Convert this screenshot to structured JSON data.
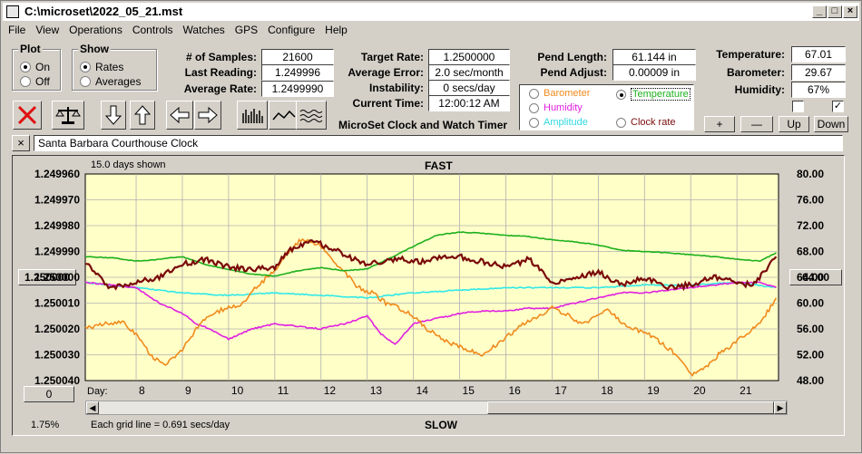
{
  "window": {
    "title": "C:\\microset\\2022_05_21.mst"
  },
  "menu": [
    "File",
    "View",
    "Operations",
    "Controls",
    "Watches",
    "GPS",
    "Configure",
    "Help"
  ],
  "plot_group": {
    "caption": "Plot",
    "options": [
      "On",
      "Off"
    ],
    "selected": "On"
  },
  "show_group": {
    "caption": "Show",
    "options": [
      "Rates",
      "Averages"
    ],
    "selected": "Rates"
  },
  "stats": {
    "samples_label": "# of Samples:",
    "samples": "21600",
    "last_label": "Last Reading:",
    "last": "1.249996",
    "avg_label": "Average Rate:",
    "avg": "1.2499990"
  },
  "target": {
    "target_label": "Target Rate:",
    "target": "1.2500000",
    "error_label": "Average Error:",
    "error": "2.0 sec/month",
    "instab_label": "Instability:",
    "instab": "0 secs/day",
    "time_label": "Current Time:",
    "time": "12:00:12 AM",
    "app_caption": "MicroSet Clock and Watch Timer"
  },
  "pend": {
    "length_label": "Pend Length:",
    "length": "61.144 in",
    "adjust_label": "Pend Adjust:",
    "adjust": "0.00009 in"
  },
  "env": {
    "temp_label": "Temperature:",
    "temp": "67.01",
    "baro_label": "Barometer:",
    "baro": "29.67",
    "hum_label": "Humidity:",
    "hum": "67%"
  },
  "legend": {
    "barometer": "Barometer",
    "temperature": "Temperature",
    "humidity": "Humidity",
    "amplitude": "Amplitude",
    "clockrate": "Clock rate",
    "selected": "Temperature"
  },
  "side_buttons": [
    "+",
    "—",
    "Up",
    "Down"
  ],
  "clock_name": "Santa Barbara Courthouse Clock",
  "chart": {
    "days_shown": "15.0 days shown",
    "top_label": "FAST",
    "bottom_label": "SLOW",
    "grid_note": "Each grid line = 0.691 secs/day",
    "day_label": "Day:",
    "ref_value_left": "1.250000",
    "ref_value_right": "64.00",
    "zero_button": "0",
    "zoom": "1.75%"
  },
  "colors": {
    "plot_bg": "#ffffc8",
    "rate": "#7a0a0a",
    "temperature": "#1cb01c",
    "barometer": "#f08a1c",
    "humidity": "#e020e0",
    "amplitude": "#30e8e8"
  },
  "chart_data": {
    "type": "line",
    "x_label": "Day:",
    "x_ticks": [
      8,
      9,
      10,
      11,
      12,
      13,
      14,
      15,
      16,
      17,
      18,
      19,
      20,
      21
    ],
    "xlim": [
      6.9,
      21.9
    ],
    "y_left_ticks": [
      "1.249960",
      "1.249970",
      "1.249980",
      "1.249990",
      "1.250000",
      "1.250010",
      "1.250020",
      "1.250030",
      "1.250040"
    ],
    "ylim_left": [
      1.24996,
      1.25004
    ],
    "y_right_ticks": [
      "80.00",
      "76.00",
      "72.00",
      "68.00",
      "64.00",
      "60.00",
      "56.00",
      "52.00",
      "48.00"
    ],
    "ylim_right": [
      48,
      80
    ],
    "series": [
      {
        "name": "Clock rate",
        "axis": "left",
        "x": [
          6.9,
          7.4,
          8.0,
          8.5,
          9.0,
          9.5,
          10.0,
          10.5,
          11.0,
          11.3,
          11.6,
          11.8,
          12.1,
          12.4,
          12.7,
          13.0,
          13.4,
          13.8,
          14.2,
          14.6,
          15.0,
          15.5,
          16.0,
          16.5,
          17.0,
          17.5,
          18.0,
          18.5,
          19.0,
          19.5,
          20.0,
          20.5,
          21.0,
          21.3,
          21.6,
          21.85
        ],
        "y": [
          1.249994,
          1.250004,
          1.250002,
          1.25,
          1.249995,
          1.249993,
          1.249996,
          1.249997,
          1.249996,
          1.24999,
          1.249987,
          1.249985,
          1.249988,
          1.24999,
          1.249993,
          1.249995,
          1.249994,
          1.249993,
          1.249994,
          1.249992,
          1.249992,
          1.249994,
          1.249996,
          1.249993,
          1.250002,
          1.25,
          1.249998,
          1.250003,
          1.25,
          1.250004,
          1.250003,
          1.25,
          1.250002,
          1.250003,
          1.249998,
          1.249992
        ]
      },
      {
        "name": "Temperature",
        "axis": "right",
        "x": [
          6.9,
          7.5,
          8.0,
          8.5,
          9.0,
          9.5,
          10.0,
          10.5,
          11.0,
          11.5,
          12.0,
          12.5,
          13.0,
          13.5,
          14.0,
          14.5,
          15.0,
          15.5,
          16.0,
          16.5,
          17.0,
          17.5,
          18.0,
          18.5,
          19.0,
          19.5,
          20.0,
          20.5,
          21.0,
          21.5,
          21.85
        ],
        "y": [
          67.2,
          67.0,
          66.5,
          66.8,
          67.2,
          66.0,
          65.2,
          64.5,
          64.2,
          65.0,
          65.5,
          65.0,
          65.3,
          67.0,
          68.8,
          70.5,
          71.0,
          70.8,
          70.5,
          70.3,
          69.8,
          69.5,
          69.0,
          68.2,
          68.0,
          67.8,
          67.5,
          67.2,
          66.8,
          66.5,
          67.8
        ]
      },
      {
        "name": "Barometer",
        "axis": "left",
        "x": [
          6.9,
          7.3,
          7.7,
          8.0,
          8.3,
          8.6,
          9.0,
          9.3,
          9.6,
          10.0,
          10.3,
          10.6,
          11.0,
          11.3,
          11.6,
          11.9,
          12.2,
          12.5,
          12.8,
          13.1,
          13.4,
          13.7,
          14.0,
          14.3,
          14.6,
          14.9,
          15.2,
          15.5,
          15.8,
          16.1,
          16.4,
          16.7,
          17.0,
          17.3,
          17.6,
          17.9,
          18.2,
          18.5,
          18.8,
          19.1,
          19.4,
          19.7,
          20.0,
          20.3,
          20.6,
          20.9,
          21.2,
          21.5,
          21.85
        ],
        "y": [
          1.25002,
          1.250018,
          1.250017,
          1.250022,
          1.25003,
          1.250034,
          1.250028,
          1.25002,
          1.250014,
          1.250012,
          1.25001,
          1.250004,
          1.249997,
          1.24999,
          1.249985,
          1.249987,
          1.249992,
          1.249998,
          1.250004,
          1.250006,
          1.25001,
          1.250012,
          1.250015,
          1.25002,
          1.250024,
          1.250026,
          1.250028,
          1.25003,
          1.250026,
          1.250022,
          1.250018,
          1.250015,
          1.250012,
          1.250014,
          1.250018,
          1.250016,
          1.250012,
          1.250018,
          1.25002,
          1.250022,
          1.250026,
          1.25003,
          1.250038,
          1.250035,
          1.25003,
          1.250026,
          1.250022,
          1.250018,
          1.250008
        ]
      },
      {
        "name": "Humidity",
        "axis": "left",
        "x": [
          6.9,
          7.5,
          8.0,
          8.5,
          9.0,
          9.3,
          9.6,
          10.0,
          10.5,
          11.0,
          11.5,
          12.0,
          12.5,
          13.0,
          13.3,
          13.6,
          14.0,
          14.5,
          15.0,
          15.5,
          16.0,
          16.5,
          17.0,
          17.5,
          18.0,
          18.5,
          19.0,
          19.5,
          20.0,
          20.5,
          21.0,
          21.5,
          21.85
        ],
        "y": [
          1.250002,
          1.250003,
          1.250004,
          1.25001,
          1.250014,
          1.250018,
          1.25002,
          1.250024,
          1.25002,
          1.250018,
          1.250019,
          1.25002,
          1.250018,
          1.250015,
          1.250022,
          1.250026,
          1.250018,
          1.250016,
          1.250014,
          1.250013,
          1.250013,
          1.250012,
          1.250012,
          1.25001,
          1.250008,
          1.250006,
          1.250006,
          1.250005,
          1.250004,
          1.250003,
          1.250002,
          1.250002,
          1.250004
        ]
      },
      {
        "name": "Amplitude",
        "axis": "left",
        "x": [
          6.9,
          8.0,
          9.0,
          10.0,
          11.0,
          12.0,
          13.0,
          14.0,
          15.0,
          16.0,
          17.0,
          18.0,
          19.0,
          20.0,
          21.0,
          21.85
        ],
        "y": [
          1.250002,
          1.250004,
          1.250006,
          1.250007,
          1.250006,
          1.250007,
          1.250008,
          1.250006,
          1.250005,
          1.250004,
          1.250004,
          1.250004,
          1.250003,
          1.250003,
          1.250002,
          1.250004
        ]
      }
    ]
  }
}
